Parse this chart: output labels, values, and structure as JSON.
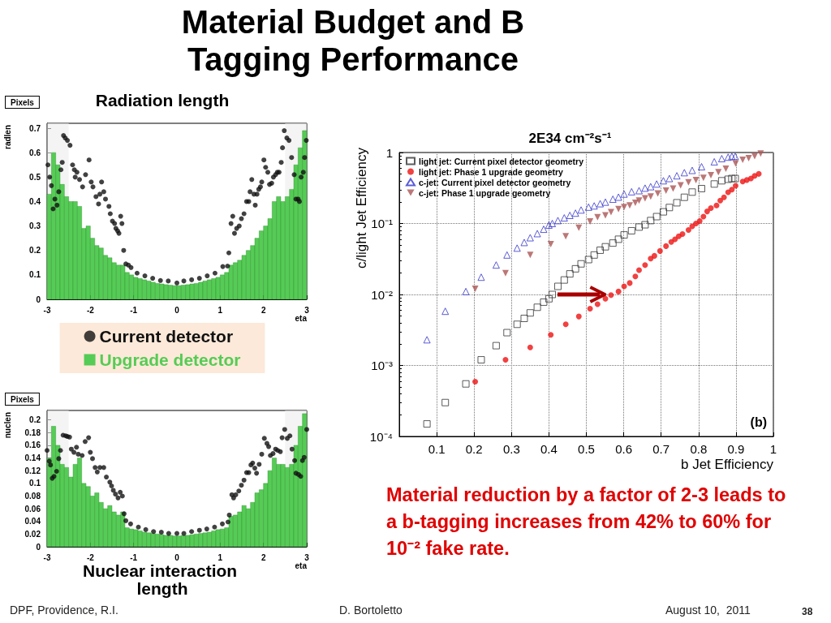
{
  "chart_data": [
    {
      "type": "histogram",
      "title": "Radiation length",
      "ylabel": "radlen",
      "xlabel": "eta",
      "xlim": [
        -3,
        3
      ],
      "xticks": [
        -3,
        -2,
        -1,
        0,
        1,
        2,
        3
      ],
      "ylim": [
        0,
        0.72
      ],
      "yticks": [
        0,
        0.1,
        0.2,
        0.3,
        0.4,
        0.5,
        0.6,
        0.7
      ],
      "grid": false,
      "annotations": [
        "Material Budget and B Tagging Performance",
        "Pixels"
      ],
      "bands": [
        {
          "axis": "x",
          "from": -3,
          "to": -2.5,
          "color": "#eeeeee"
        },
        {
          "axis": "x",
          "from": 2.5,
          "to": 3,
          "color": "#eeeeee"
        }
      ],
      "series": [
        {
          "color": "#55cc55",
          "bins": [
            -3,
            -2.9,
            -2.8,
            -2.7,
            -2.6,
            -2.5,
            -2.4,
            -2.3,
            -2.2,
            -2.1,
            -2,
            -1.9,
            -1.8,
            -1.7,
            -1.6,
            -1.5,
            -1.4,
            -1.3,
            -1.2,
            -1.1,
            -1,
            -0.9,
            -0.8,
            -0.7,
            -0.6,
            -0.5,
            -0.4,
            -0.3,
            -0.2,
            -0.1,
            0,
            0.1,
            0.2,
            0.3,
            0.4,
            0.5,
            0.6,
            0.7,
            0.8,
            0.9,
            1,
            1.1,
            1.2,
            1.3,
            1.4,
            1.5,
            1.6,
            1.7,
            1.8,
            1.9,
            2,
            2.1,
            2.2,
            2.3,
            2.4,
            2.5,
            2.6,
            2.7,
            2.8,
            2.9,
            3
          ],
          "values": [
            0.43,
            0.6,
            0.55,
            0.47,
            0.42,
            0.4,
            0.4,
            0.38,
            0.29,
            0.3,
            0.25,
            0.22,
            0.21,
            0.18,
            0.17,
            0.15,
            0.14,
            0.14,
            0.11,
            0.1,
            0.09,
            0.085,
            0.08,
            0.075,
            0.07,
            0.065,
            0.063,
            0.06,
            0.058,
            0.056,
            0.056,
            0.058,
            0.06,
            0.063,
            0.065,
            0.07,
            0.075,
            0.08,
            0.085,
            0.09,
            0.1,
            0.11,
            0.14,
            0.15,
            0.16,
            0.18,
            0.2,
            0.22,
            0.25,
            0.28,
            0.3,
            0.33,
            0.4,
            0.42,
            0.4,
            0.42,
            0.45,
            0.55,
            0.62,
            0.69
          ]
        },
        {
          "type": "scatter",
          "color": "#111111",
          "marker": "circle",
          "x": [
            -2.98,
            -2.94,
            -2.9,
            -2.86,
            -2.82,
            -2.77,
            -2.73,
            -2.68,
            -2.65,
            -2.62,
            -2.58,
            -2.53,
            -2.47,
            -2.41,
            -2.37,
            -2.35,
            -2.31,
            -2.25,
            -2.18,
            -2.11,
            -2.03,
            -1.98,
            -1.94,
            -1.87,
            -1.81,
            -1.78,
            -1.74,
            -1.69,
            -1.65,
            -1.57,
            -1.54,
            -1.49,
            -1.44,
            -1.41,
            -1.37,
            -1.34,
            -1.3,
            -1.27,
            -1.23,
            -1.18,
            -1.12,
            -1.06,
            -0.92,
            -0.74,
            -0.56,
            -0.38,
            -0.2,
            0,
            0.16,
            0.34,
            0.52,
            0.7,
            0.88,
            1.06,
            1.17,
            1.2,
            1.25,
            1.29,
            1.33,
            1.38,
            1.44,
            1.49,
            1.55,
            1.61,
            1.66,
            1.69,
            1.73,
            1.78,
            1.81,
            1.85,
            1.89,
            1.93,
            1.96,
            2.01,
            2.05,
            2.1,
            2.14,
            2.19,
            2.23,
            2.28,
            2.32,
            2.36,
            2.41,
            2.44,
            2.48,
            2.54,
            2.59,
            2.65,
            2.71,
            2.75,
            2.8,
            2.83,
            2.87,
            2.92,
            2.95,
            2.99
          ],
          "values": [
            0.55,
            0.5,
            0.465,
            0.37,
            0.41,
            0.385,
            0.44,
            0.53,
            0.56,
            0.67,
            0.66,
            0.65,
            0.63,
            0.55,
            0.53,
            0.5,
            0.52,
            0.49,
            0.46,
            0.51,
            0.57,
            0.48,
            0.46,
            0.42,
            0.39,
            0.43,
            0.48,
            0.44,
            0.41,
            0.38,
            0.35,
            0.32,
            0.31,
            0.29,
            0.28,
            0.27,
            0.34,
            0.31,
            0.2,
            0.145,
            0.14,
            0.13,
            0.107,
            0.096,
            0.086,
            0.077,
            0.075,
            0.067,
            0.075,
            0.08,
            0.086,
            0.096,
            0.107,
            0.134,
            0.136,
            0.19,
            0.31,
            0.34,
            0.27,
            0.29,
            0.3,
            0.33,
            0.35,
            0.4,
            0.4,
            0.44,
            0.49,
            0.43,
            0.385,
            0.43,
            0.45,
            0.46,
            0.48,
            0.57,
            0.54,
            0.52,
            0.47,
            0.475,
            0.5,
            0.51,
            0.52,
            0.52,
            0.56,
            0.62,
            0.69,
            0.66,
            0.65,
            0.58,
            0.51,
            0.41,
            0.41,
            0.4,
            0.5,
            0.52,
            0.58,
            0.65
          ]
        }
      ]
    },
    {
      "type": "histogram",
      "title": "Nuclear interaction length",
      "ylabel": "nuclen",
      "xlabel": "eta",
      "xlim": [
        -3,
        3
      ],
      "xticks": [
        -3,
        -2,
        -1,
        0,
        1,
        2,
        3
      ],
      "ylim": [
        0,
        0.215
      ],
      "yticks": [
        0,
        0.02,
        0.04,
        0.06,
        0.08,
        0.1,
        0.12,
        0.14,
        0.16,
        0.18,
        0.2
      ],
      "grid": false,
      "legend": "top",
      "annotations": [
        "Pixels"
      ],
      "bands": [
        {
          "axis": "x",
          "from": -3,
          "to": -2.5,
          "color": "#eeeeee"
        },
        {
          "axis": "x",
          "from": 2.5,
          "to": 3,
          "color": "#eeeeee"
        }
      ],
      "series": [
        {
          "type": "scatter",
          "name": "Current detector",
          "color": "#111111",
          "marker": "circle",
          "x": [
            -3,
            -2.95,
            -2.92,
            -2.88,
            -2.84,
            -2.78,
            -2.73,
            -2.69,
            -2.63,
            -2.57,
            -2.53,
            -2.48,
            -2.44,
            -2.38,
            -2.32,
            -2.28,
            -2.19,
            -2.12,
            -2.04,
            -2,
            -1.95,
            -1.89,
            -1.84,
            -1.78,
            -1.69,
            -1.63,
            -1.55,
            -1.51,
            -1.47,
            -1.42,
            -1.36,
            -1.31,
            -1.26,
            -1.22,
            -1.18,
            -1.07,
            -0.89,
            -0.72,
            -0.54,
            -0.36,
            -0.19,
            0,
            0.16,
            0.34,
            0.52,
            0.69,
            0.87,
            1.05,
            1.18,
            1.21,
            1.27,
            1.31,
            1.36,
            1.43,
            1.49,
            1.55,
            1.61,
            1.66,
            1.71,
            1.75,
            1.8,
            1.84,
            1.9,
            1.96,
            2.02,
            2.08,
            2.12,
            2.16,
            2.22,
            2.28,
            2.33,
            2.39,
            2.43,
            2.49,
            2.55,
            2.61,
            2.66,
            2.72,
            2.75,
            2.81,
            2.86,
            2.9,
            2.94,
            3
          ],
          "values": [
            0.152,
            0.135,
            0.129,
            0.108,
            0.111,
            0.119,
            0.139,
            0.152,
            0.176,
            0.175,
            0.174,
            0.173,
            0.154,
            0.149,
            0.157,
            0.146,
            0.144,
            0.166,
            0.172,
            0.149,
            0.139,
            0.125,
            0.118,
            0.125,
            0.125,
            0.11,
            0.102,
            0.096,
            0.089,
            0.083,
            0.077,
            0.086,
            0.08,
            0.052,
            0.041,
            0.036,
            0.031,
            0.027,
            0.024,
            0.023,
            0.021,
            0.021,
            0.021,
            0.024,
            0.026,
            0.028,
            0.031,
            0.036,
            0.039,
            0.05,
            0.082,
            0.077,
            0.082,
            0.088,
            0.097,
            0.105,
            0.117,
            0.117,
            0.129,
            0.132,
            0.124,
            0.116,
            0.13,
            0.146,
            0.171,
            0.163,
            0.158,
            0.144,
            0.147,
            0.154,
            0.152,
            0.15,
            0.172,
            0.185,
            0.171,
            0.175,
            0.154,
            0.136,
            0.116,
            0.114,
            0.111,
            0.136,
            0.141,
            0.185
          ]
        },
        {
          "name": "Upgrade detector",
          "color": "#55cc55",
          "bins": [
            -3,
            -2.9,
            -2.8,
            -2.7,
            -2.6,
            -2.5,
            -2.4,
            -2.3,
            -2.2,
            -2.1,
            -2,
            -1.9,
            -1.8,
            -1.7,
            -1.6,
            -1.5,
            -1.4,
            -1.3,
            -1.2,
            -1.1,
            -1,
            -0.9,
            -0.8,
            -0.7,
            -0.6,
            -0.5,
            -0.4,
            -0.3,
            -0.2,
            -0.1,
            0,
            0.1,
            0.2,
            0.3,
            0.4,
            0.5,
            0.6,
            0.7,
            0.8,
            0.9,
            1,
            1.1,
            1.2,
            1.3,
            1.4,
            1.5,
            1.6,
            1.7,
            1.8,
            1.9,
            2,
            2.1,
            2.2,
            2.3,
            2.4,
            2.5,
            2.6,
            2.7,
            2.8,
            2.9,
            3
          ],
          "values": [
            0.14,
            0.19,
            0.16,
            0.13,
            0.125,
            0.11,
            0.13,
            0.14,
            0.1,
            0.095,
            0.08,
            0.085,
            0.07,
            0.06,
            0.065,
            0.055,
            0.05,
            0.055,
            0.03,
            0.028,
            0.027,
            0.025,
            0.023,
            0.022,
            0.021,
            0.02,
            0.019,
            0.018,
            0.018,
            0.017,
            0.017,
            0.018,
            0.018,
            0.019,
            0.02,
            0.021,
            0.022,
            0.023,
            0.025,
            0.027,
            0.028,
            0.03,
            0.048,
            0.05,
            0.055,
            0.065,
            0.06,
            0.07,
            0.085,
            0.09,
            0.1,
            0.12,
            0.14,
            0.13,
            0.13,
            0.125,
            0.13,
            0.16,
            0.19,
            0.21
          ]
        }
      ]
    },
    {
      "type": "scatter",
      "title": "2E34 cm⁻²s⁻¹",
      "xlabel": "b Jet Efficiency",
      "ylabel": "c/light Jet Efficiency",
      "log": "y",
      "xlim": [
        0,
        1
      ],
      "xticks": [
        0.1,
        0.2,
        0.3,
        0.4,
        0.5,
        0.6,
        0.7,
        0.8,
        0.9,
        1
      ],
      "ylim": [
        0.0001,
        1
      ],
      "yticks": [
        {
          "value": 0.0001,
          "label": "10⁻⁴"
        },
        {
          "value": 0.001,
          "label": "10⁻³"
        },
        {
          "value": 0.01,
          "label": "10⁻²"
        },
        {
          "value": 0.1,
          "label": "10⁻¹"
        },
        1
      ],
      "grid": true,
      "legend": "top left",
      "annotations": [
        "(b)",
        "Material reduction by a factor of 2-3 leads to a b-tagging increases from 42% to 60%  for 10⁻² fake rate.",
        "DPF, Providence, R.I.",
        "D. Bortoletto",
        "August 10,  2011",
        "38"
      ],
      "series": [
        {
          "name": "light jet: Current pixel detector geometry",
          "color": "#333333",
          "marker": "square",
          "x": [
            0.074,
            0.123,
            0.178,
            0.219,
            0.259,
            0.288,
            0.315,
            0.334,
            0.35,
            0.369,
            0.386,
            0.4,
            0.409,
            0.424,
            0.441,
            0.456,
            0.471,
            0.486,
            0.506,
            0.521,
            0.537,
            0.551,
            0.571,
            0.586,
            0.601,
            0.621,
            0.641,
            0.657,
            0.672,
            0.688,
            0.706,
            0.722,
            0.742,
            0.762,
            0.783,
            0.808,
            0.842,
            0.862,
            0.879,
            0.889,
            0.898
          ],
          "values": [
            0.00015,
            0.0003,
            0.00055,
            0.0012,
            0.0019,
            0.0029,
            0.0038,
            0.0046,
            0.0055,
            0.0066,
            0.0078,
            0.0087,
            0.01,
            0.013,
            0.016,
            0.0195,
            0.023,
            0.027,
            0.031,
            0.036,
            0.042,
            0.047,
            0.053,
            0.06,
            0.069,
            0.079,
            0.089,
            0.096,
            0.11,
            0.125,
            0.146,
            0.168,
            0.196,
            0.234,
            0.277,
            0.31,
            0.36,
            0.4,
            0.42,
            0.43,
            0.43
          ]
        },
        {
          "name": "light jet: Phase 1 upgrade geometry",
          "color": "#ee1111",
          "marker": "circle",
          "x": [
            0.203,
            0.284,
            0.35,
            0.405,
            0.445,
            0.48,
            0.51,
            0.53,
            0.551,
            0.566,
            0.586,
            0.601,
            0.616,
            0.631,
            0.641,
            0.657,
            0.672,
            0.682,
            0.697,
            0.713,
            0.727,
            0.737,
            0.747,
            0.757,
            0.773,
            0.783,
            0.793,
            0.803,
            0.813,
            0.823,
            0.833,
            0.848,
            0.858,
            0.868,
            0.879,
            0.889,
            0.899,
            0.918,
            0.929,
            0.94,
            0.95,
            0.961
          ],
          "values": [
            0.00059,
            0.0012,
            0.0018,
            0.0027,
            0.0038,
            0.0049,
            0.0063,
            0.0073,
            0.0087,
            0.0098,
            0.011,
            0.013,
            0.0145,
            0.018,
            0.022,
            0.026,
            0.032,
            0.035,
            0.041,
            0.048,
            0.055,
            0.06,
            0.066,
            0.071,
            0.081,
            0.091,
            0.1,
            0.108,
            0.125,
            0.148,
            0.165,
            0.18,
            0.21,
            0.234,
            0.275,
            0.3,
            0.34,
            0.39,
            0.41,
            0.43,
            0.47,
            0.5
          ]
        },
        {
          "name": "c-jet: Current pixel detector geometry",
          "color": "#3333cc",
          "marker": "triangle",
          "x": [
            0.074,
            0.123,
            0.178,
            0.219,
            0.259,
            0.288,
            0.315,
            0.334,
            0.35,
            0.369,
            0.386,
            0.4,
            0.409,
            0.424,
            0.441,
            0.456,
            0.471,
            0.486,
            0.506,
            0.521,
            0.537,
            0.551,
            0.571,
            0.586,
            0.601,
            0.621,
            0.641,
            0.657,
            0.672,
            0.688,
            0.706,
            0.722,
            0.742,
            0.762,
            0.783,
            0.808,
            0.842,
            0.862,
            0.879,
            0.889,
            0.898
          ],
          "values": [
            0.0023,
            0.0058,
            0.011,
            0.0175,
            0.026,
            0.036,
            0.045,
            0.054,
            0.063,
            0.072,
            0.083,
            0.095,
            0.1,
            0.11,
            0.12,
            0.13,
            0.14,
            0.155,
            0.17,
            0.177,
            0.19,
            0.2,
            0.22,
            0.235,
            0.26,
            0.28,
            0.29,
            0.315,
            0.33,
            0.36,
            0.4,
            0.43,
            0.47,
            0.52,
            0.56,
            0.63,
            0.74,
            0.82,
            0.86,
            0.88,
            0.88
          ]
        },
        {
          "name": "c-jet: Phase 1 upgrade geometry",
          "color": "#aa5555",
          "marker": "triangle-down",
          "x": [
            0.203,
            0.284,
            0.35,
            0.405,
            0.445,
            0.48,
            0.51,
            0.53,
            0.551,
            0.566,
            0.586,
            0.601,
            0.616,
            0.631,
            0.641,
            0.657,
            0.672,
            0.691,
            0.713,
            0.732,
            0.752,
            0.773,
            0.793,
            0.813,
            0.833,
            0.853,
            0.873,
            0.899,
            0.918,
            0.934,
            0.95,
            0.966
          ],
          "values": [
            0.012,
            0.02,
            0.036,
            0.051,
            0.066,
            0.087,
            0.107,
            0.123,
            0.13,
            0.145,
            0.16,
            0.17,
            0.18,
            0.196,
            0.21,
            0.226,
            0.24,
            0.265,
            0.29,
            0.31,
            0.345,
            0.38,
            0.41,
            0.44,
            0.48,
            0.53,
            0.59,
            0.7,
            0.79,
            0.83,
            0.89,
            0.97
          ]
        }
      ]
    }
  ]
}
